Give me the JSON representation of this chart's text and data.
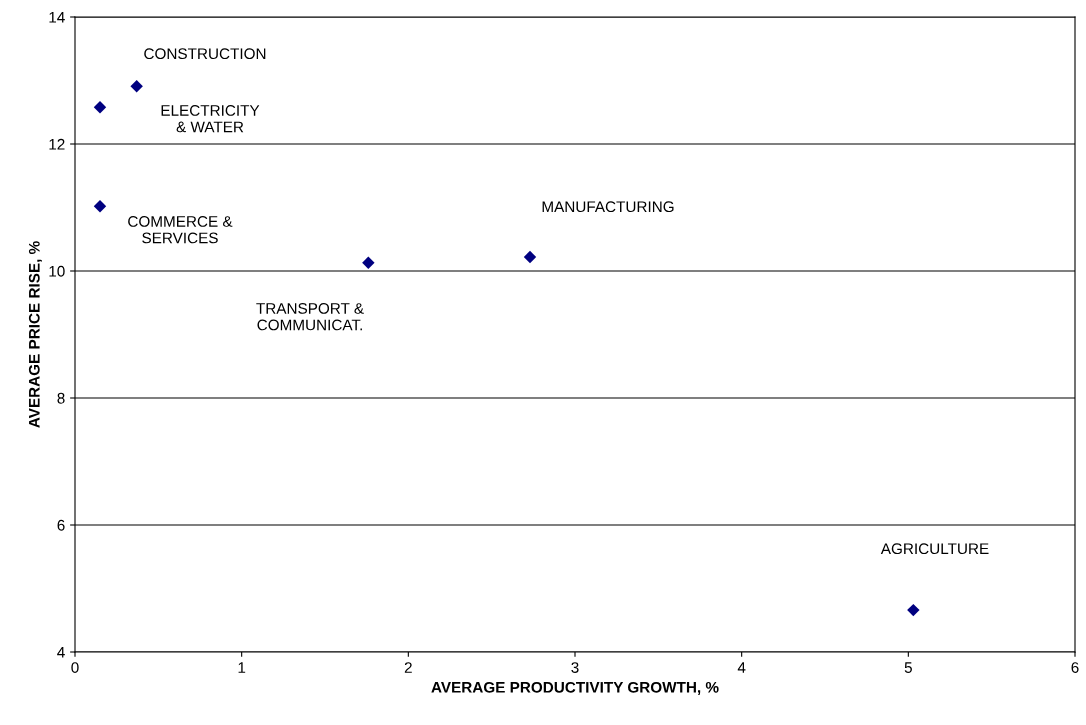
{
  "chart_data": {
    "type": "scatter",
    "xlabel": "AVERAGE PRODUCTIVITY GROWTH, %",
    "ylabel": "AVERAGE PRICE RISE, %",
    "x": [
      0.37,
      0.15,
      0.15,
      1.76,
      2.73,
      5.03
    ],
    "values": [
      12.91,
      12.58,
      11.02,
      10.13,
      10.22,
      4.66
    ],
    "color": "#000080",
    "marker": "diamond",
    "grid": "y",
    "xlim": [
      0,
      6
    ],
    "xticks": [
      0,
      1,
      2,
      3,
      4,
      5,
      6
    ],
    "ylim": [
      4,
      14
    ],
    "yticks": [
      4,
      6,
      8,
      10,
      12,
      14
    ],
    "annotations": [
      "CONSTRUCTION",
      "ELECTRICITY\n& WATER",
      "COMMERCE &\nSERVICES",
      "TRANSPORT &\nCOMMUNICAT.",
      "MANUFACTURING",
      "AGRICULTURE"
    ]
  }
}
